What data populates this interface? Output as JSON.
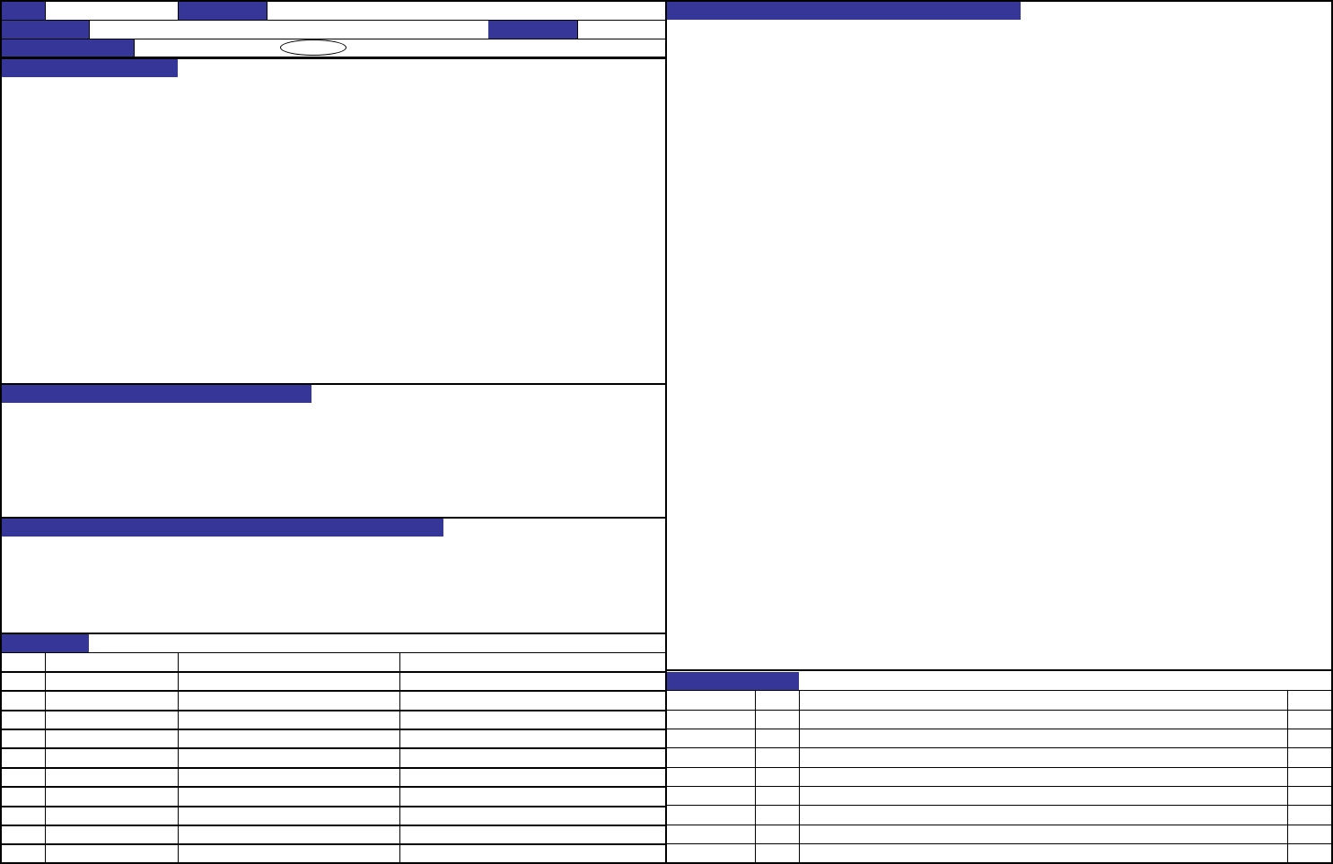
{
  "colors": {
    "title_bar": "#363699",
    "border": "#000000",
    "background": "#ffffff"
  }
}
